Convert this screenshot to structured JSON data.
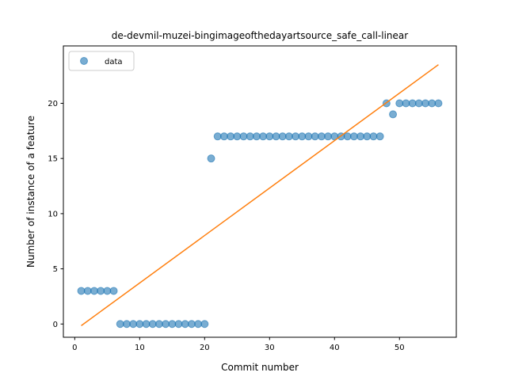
{
  "chart_data": {
    "type": "scatter",
    "title": "de-devmil-muzei-bingimageofthedayartsource_safe_call-linear",
    "xlabel": "Commit number",
    "ylabel": "Number of instance of a feature",
    "xlim": [
      -1.75,
      58.75
    ],
    "ylim": [
      -1.2,
      25.2
    ],
    "xticks": [
      0,
      10,
      20,
      30,
      40,
      50
    ],
    "yticks": [
      0,
      5,
      10,
      15,
      20
    ],
    "grid": false,
    "legend": {
      "position": "top-left",
      "entries": [
        "data"
      ]
    },
    "series": [
      {
        "name": "data",
        "kind": "scatter",
        "color": "#1f77b4",
        "x": [
          1,
          2,
          3,
          4,
          5,
          6,
          7,
          8,
          9,
          10,
          11,
          12,
          13,
          14,
          15,
          16,
          17,
          18,
          19,
          20,
          21,
          22,
          23,
          24,
          25,
          26,
          27,
          28,
          29,
          30,
          31,
          32,
          33,
          34,
          35,
          36,
          37,
          38,
          39,
          40,
          41,
          42,
          43,
          44,
          45,
          46,
          47,
          48,
          49,
          50,
          51,
          52,
          53,
          54,
          55,
          56
        ],
        "y": [
          3,
          3,
          3,
          3,
          3,
          3,
          0,
          0,
          0,
          0,
          0,
          0,
          0,
          0,
          0,
          0,
          0,
          0,
          0,
          0,
          15,
          17,
          17,
          17,
          17,
          17,
          17,
          17,
          17,
          17,
          17,
          17,
          17,
          17,
          17,
          17,
          17,
          17,
          17,
          17,
          17,
          17,
          17,
          17,
          17,
          17,
          17,
          20,
          19,
          20,
          20,
          20,
          20,
          20,
          20,
          20
        ]
      },
      {
        "kind": "line",
        "color": "#ff7f0e",
        "x": [
          1,
          56
        ],
        "y": [
          -0.15,
          23.5
        ]
      }
    ]
  }
}
